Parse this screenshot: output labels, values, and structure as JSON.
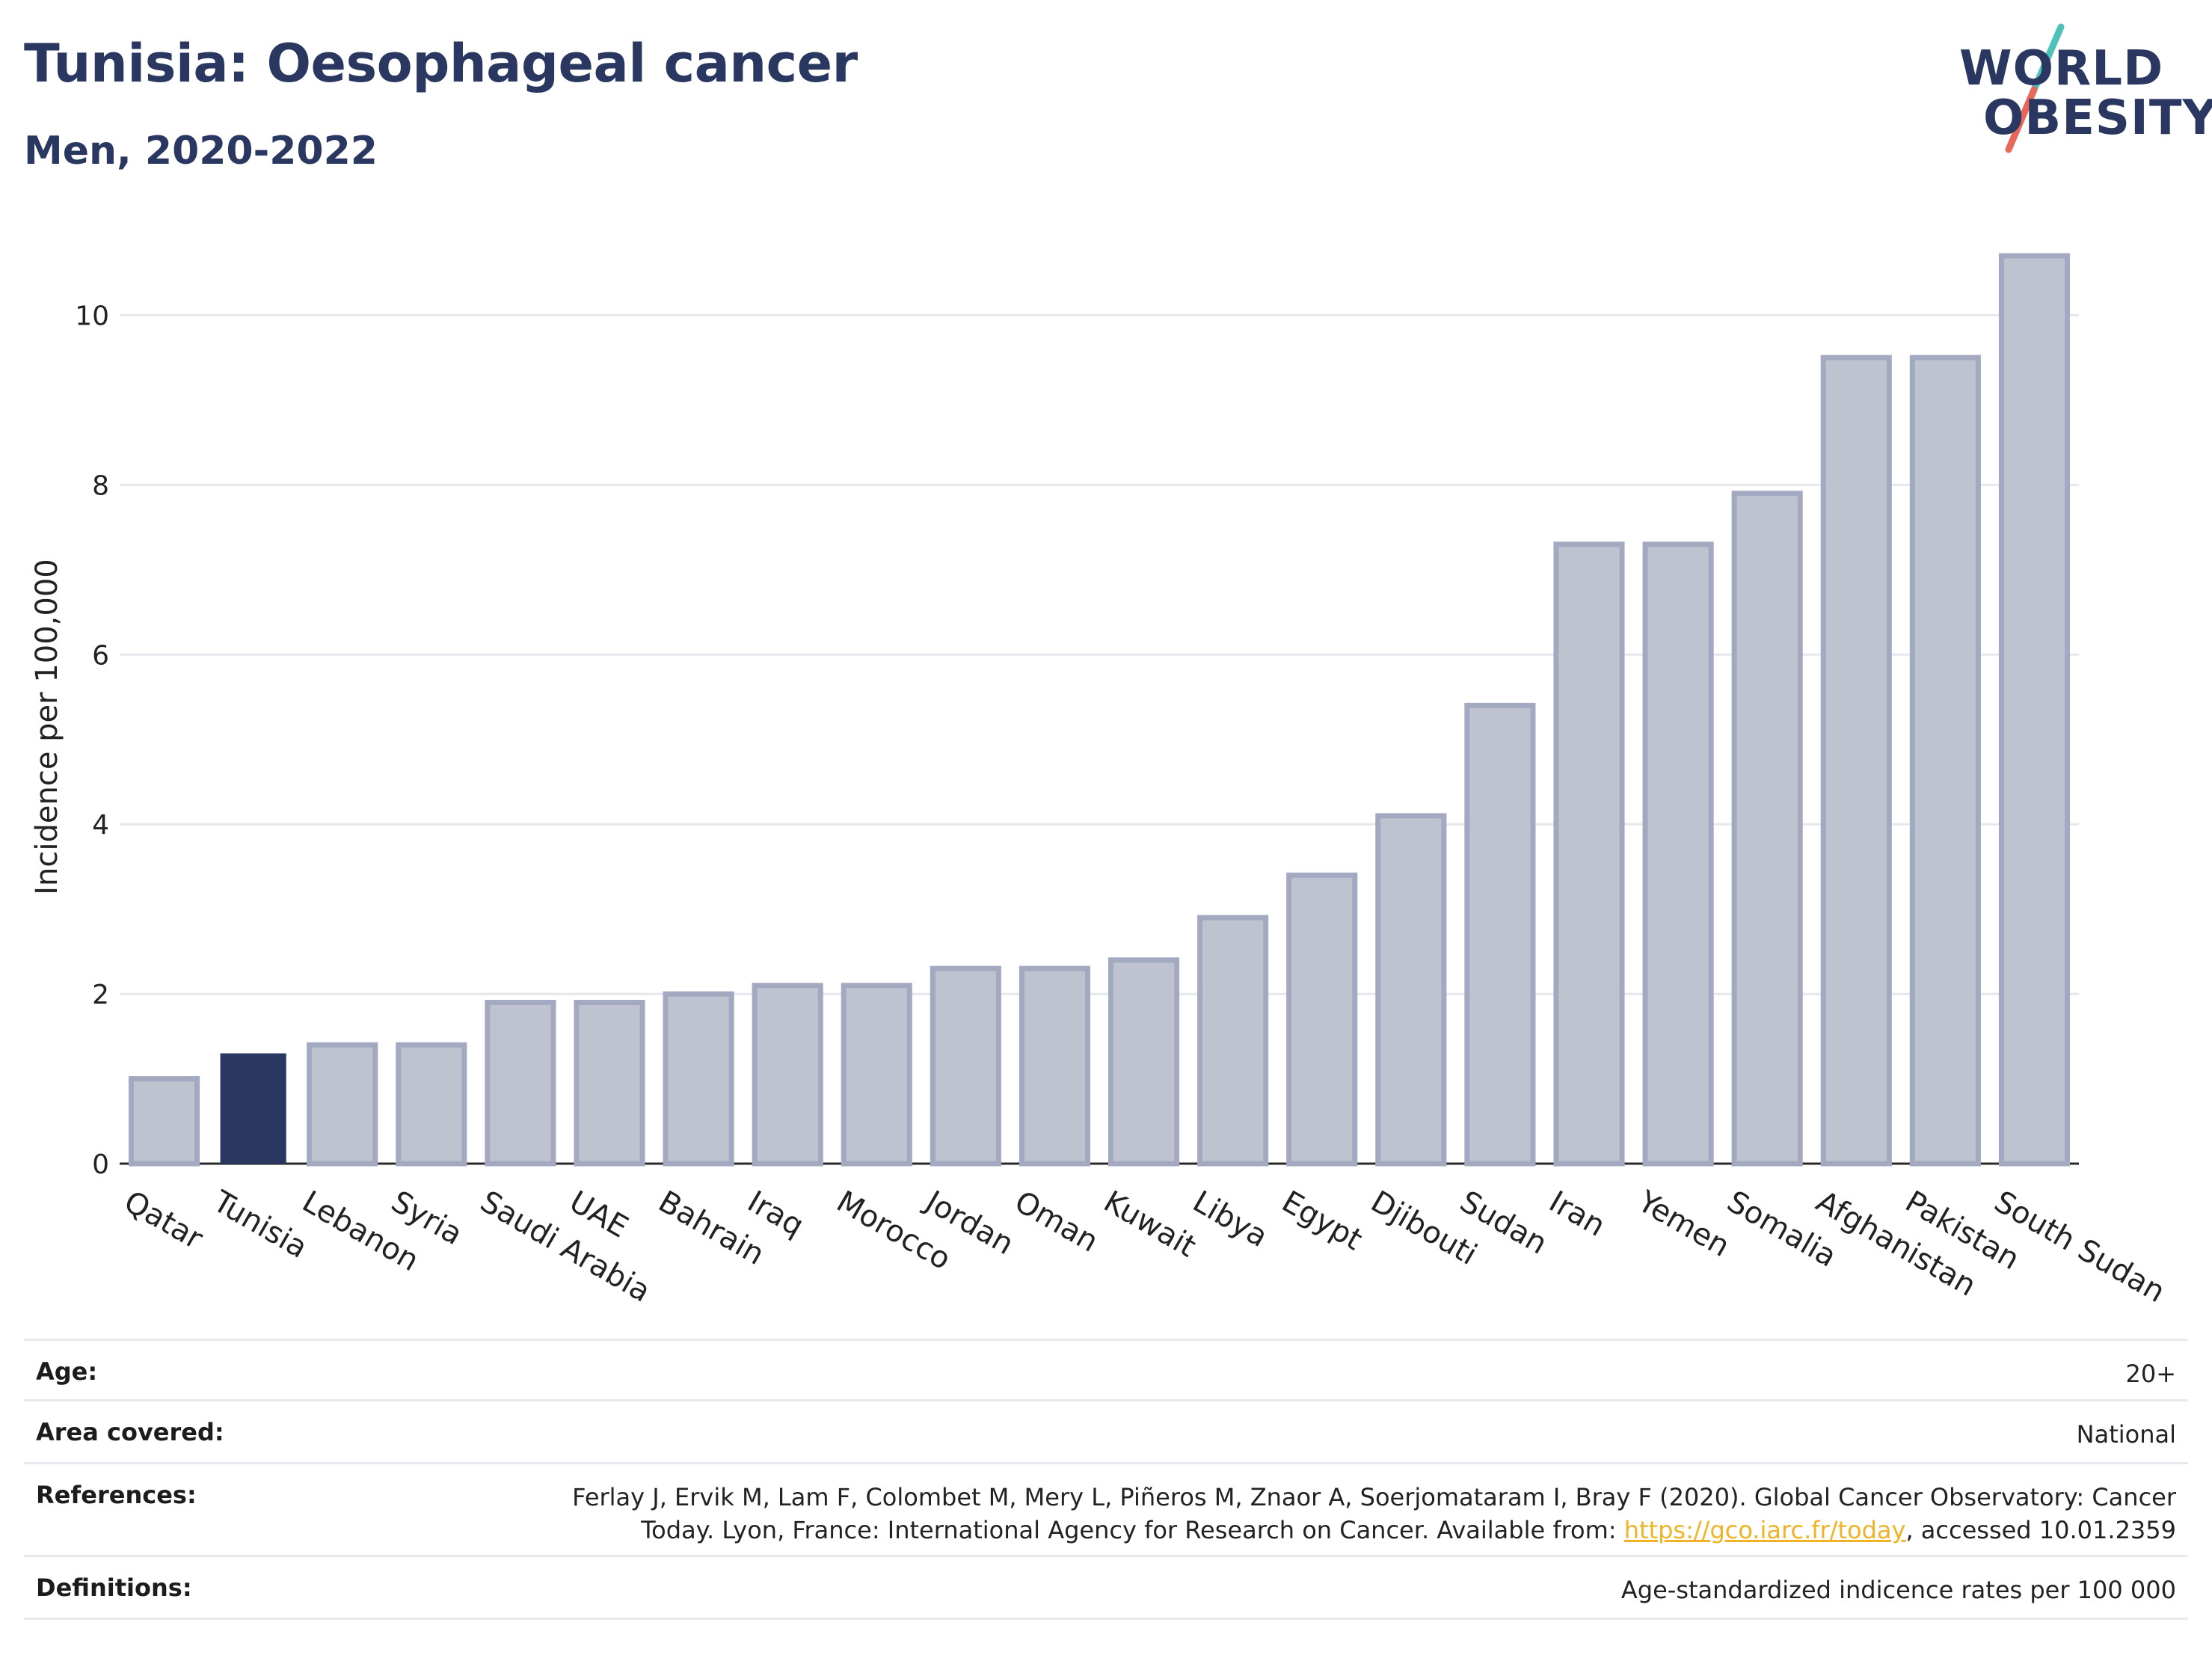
{
  "header": {
    "title": "Tunisia: Oesophageal cancer",
    "subtitle": "Men, 2020-2022"
  },
  "logo": {
    "line1": "WORLD",
    "line2": "OBESITY",
    "slash_color_top": "#4ec2b8",
    "slash_color_bottom": "#e8665a"
  },
  "colors": {
    "bar_default_fill": "#bfc3d0",
    "bar_default_stroke": "#a3a9c0",
    "bar_highlight": "#2a3761",
    "grid": "#e6e8ee",
    "text_dark": "#2a3761"
  },
  "chart_data": {
    "type": "bar",
    "title": "",
    "xlabel": "",
    "ylabel": "Incidence per 100,000",
    "ylim": [
      0,
      11
    ],
    "yticks": [
      0,
      2,
      4,
      6,
      8,
      10
    ],
    "grid": true,
    "highlight": "Tunisia",
    "categories": [
      "Qatar",
      "Tunisia",
      "Lebanon",
      "Syria",
      "Saudi Arabia",
      "UAE",
      "Bahrain",
      "Iraq",
      "Morocco",
      "Jordan",
      "Oman",
      "Kuwait",
      "Libya",
      "Egypt",
      "Djibouti",
      "Sudan",
      "Iran",
      "Yemen",
      "Somalia",
      "Afghanistan",
      "Pakistan",
      "South Sudan"
    ],
    "values": [
      1.0,
      1.3,
      1.4,
      1.4,
      1.9,
      1.9,
      2.0,
      2.1,
      2.1,
      2.3,
      2.3,
      2.4,
      2.9,
      3.4,
      4.1,
      5.4,
      7.3,
      7.3,
      7.9,
      9.5,
      9.5,
      10.7
    ]
  },
  "info": {
    "age_label": "Age:",
    "age_value": "20+",
    "area_label": "Area covered:",
    "area_value": "National",
    "references_label": "References:",
    "references_line1": "Ferlay J, Ervik M, Lam F, Colombet M, Mery L, Piñeros M, Znaor A, Soerjomataram I, Bray F (2020). Global Cancer Observatory: Cancer",
    "references_line2_pre": "Today. Lyon, France: International Agency for Research on Cancer. Available from: ",
    "references_link": "https://gco.iarc.fr/today",
    "references_line2_post": ", accessed 10.01.2359",
    "definitions_label": "Definitions:",
    "definitions_value": "Age-standardized indicence rates per 100 000"
  }
}
